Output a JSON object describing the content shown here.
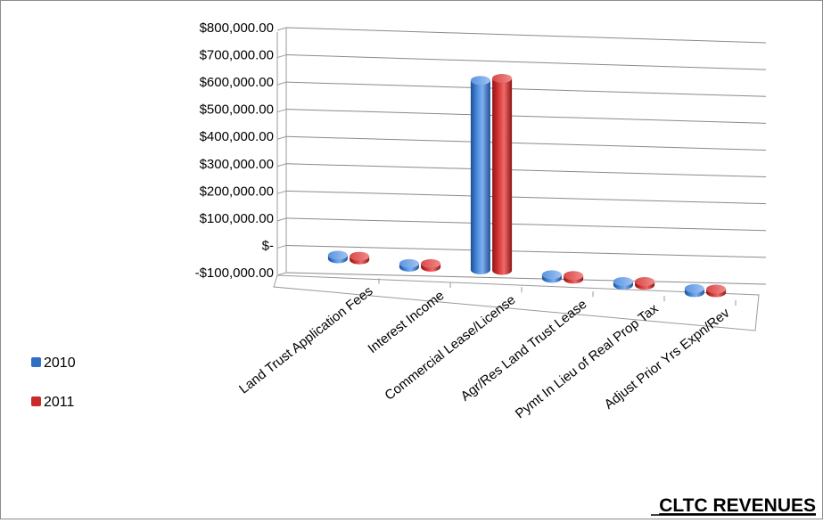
{
  "chart_data": {
    "type": "bar",
    "style": "3d-cylinder",
    "title": "CLTC REVENUES",
    "xlabel": "",
    "ylabel": "",
    "ylim": [
      -100000,
      800000
    ],
    "y_tick_step": 100000,
    "y_tick_labels": [
      "-$100,000.00",
      "$-",
      "$100,000.00",
      "$200,000.00",
      "$300,000.00",
      "$400,000.00",
      "$500,000.00",
      "$600,000.00",
      "$700,000.00",
      "$800,000.00"
    ],
    "categories": [
      "Land Trust Application Fees",
      "Interest Income",
      "Commercial Lease/License",
      "Agr/Res Land Trust Lease",
      "Pymt In Lieu of Real Prop Tax",
      "Adjust Prior Yrs Expn/Rev"
    ],
    "series": [
      {
        "name": "2010",
        "color": "#2f6fc4",
        "values": [
          8000,
          0,
          700000,
          5000,
          3000,
          -15000
        ]
      },
      {
        "name": "2011",
        "color": "#c92a2a",
        "values": [
          6000,
          2000,
          710000,
          4000,
          5000,
          -12000
        ]
      }
    ],
    "grid": true,
    "legend_position": "left"
  }
}
